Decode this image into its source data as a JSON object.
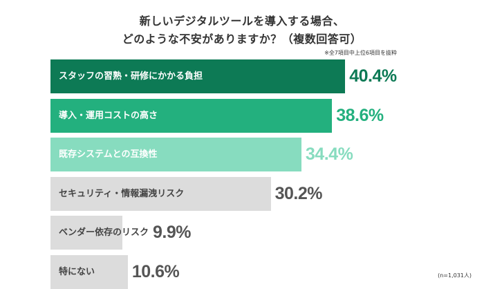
{
  "header": {
    "title_line1": "新しいデジタルツールを導入する場合、",
    "title_line2": "どのような不安がありますか？（複数回答可）",
    "note": "※全7項目中上位6項目を抜粋",
    "sample": "(n=1,031人)"
  },
  "chart_data": {
    "type": "bar",
    "orientation": "horizontal",
    "title": "新しいデジタルツールを導入する場合、どのような不安がありますか？（複数回答可）",
    "categories": [
      "スタッフの習熟・研修にかかる負担",
      "導入・運用コストの高さ",
      "既存システムとの互換性",
      "セキュリティ・情報漏洩リスク",
      "ベンダー依存のリスク",
      "特にない"
    ],
    "values": [
      40.4,
      38.6,
      34.4,
      30.2,
      9.9,
      10.6
    ],
    "value_labels": [
      "40.4%",
      "38.6%",
      "34.4%",
      "30.2%",
      "9.9%",
      "10.6%"
    ],
    "unit": "%",
    "colors": {
      "bar_fill": [
        "#0d7a55",
        "#23b07e",
        "#87dcbf",
        "#dcdcdc",
        "#dcdcdc",
        "#dcdcdc"
      ],
      "label_text": [
        "#ffffff",
        "#ffffff",
        "#ffffff",
        "#444444",
        "#444444",
        "#444444"
      ],
      "value_text": [
        "#0d7a55",
        "#23b07e",
        "#87dcbf",
        "#555555",
        "#555555",
        "#555555"
      ]
    },
    "grid": false,
    "legend": "none"
  }
}
